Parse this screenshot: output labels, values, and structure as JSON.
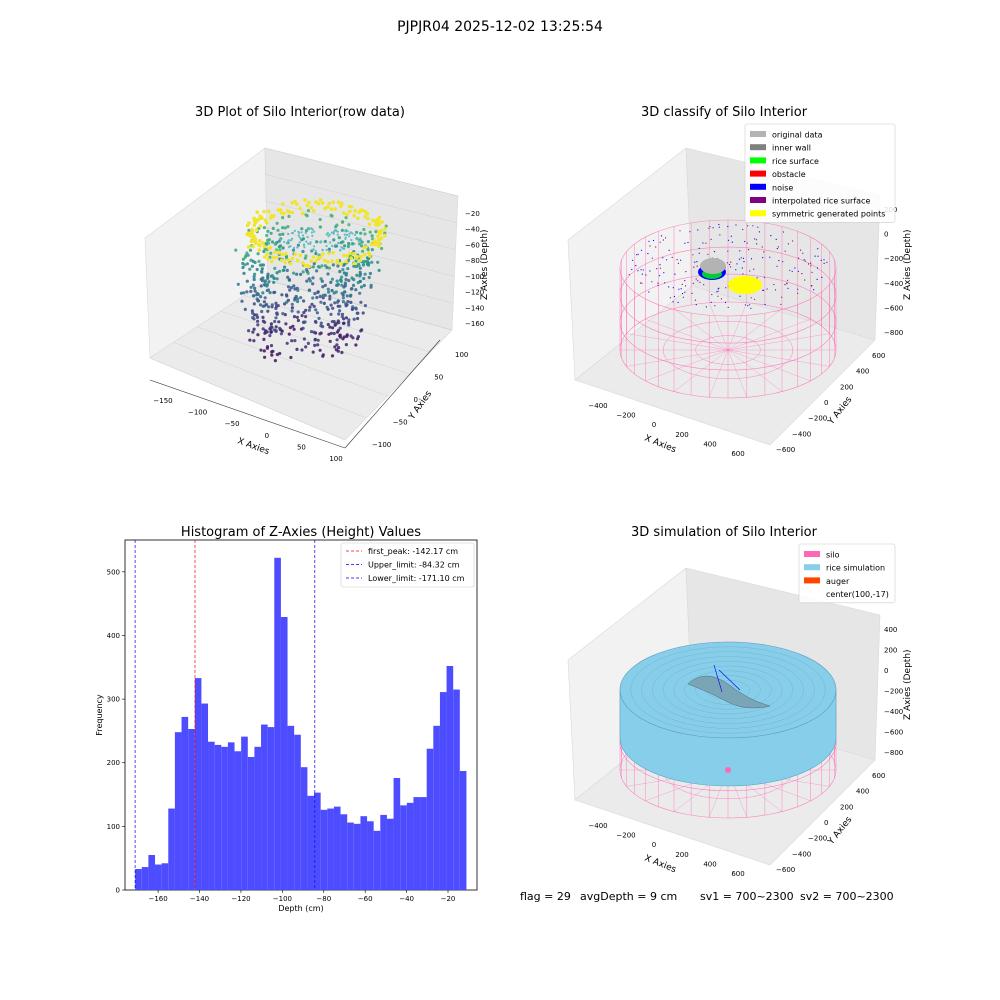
{
  "suptitle": "PJPJR04 2025-12-02 13:25:54",
  "footer": {
    "flag": "flag = 29",
    "avg": "avgDepth = 9 cm",
    "sv1": "sv1 = 700~2300",
    "sv2": "sv2 = 700~2300"
  },
  "colors": {
    "hist_bar": "#4d4dff",
    "peak_line": "#ff0000",
    "limit_line": "#0000ff",
    "silo": "#ff69b4",
    "rice": "#87ceeb",
    "auger": "#ff4500",
    "original": "#b3b3b3",
    "inner_wall": "#808080",
    "rice_surface": "#00ff00",
    "obstacle": "#ff0000",
    "noise": "#0000ff",
    "interpolated": "#800080",
    "symmetric": "#ffff00"
  },
  "chart_data": [
    {
      "type": "scatter",
      "projection": "3d",
      "title": "3D Plot of Silo Interior(row data)",
      "xlabel": "X Axies",
      "ylabel": "Y Axies",
      "zlabel": "Z Axies (Depth)",
      "xticks": [
        "−150",
        "−100",
        "−50",
        "0",
        "50",
        "100"
      ],
      "yticks": [
        "−100",
        "−50",
        "0",
        "50",
        "100"
      ],
      "zticks": [
        "−20",
        "−40",
        "−60",
        "−80",
        "−100",
        "−120",
        "−140",
        "−160"
      ],
      "colormap": "viridis"
    },
    {
      "type": "scatter",
      "projection": "3d",
      "title": "3D classify of Silo Interior",
      "xlabel": "X Axies",
      "ylabel": "Y Axies",
      "zlabel": "Z Axies (Depth)",
      "xticks": [
        "−400",
        "−200",
        "0",
        "200",
        "400",
        "600"
      ],
      "yticks": [
        "−600",
        "−400",
        "−200",
        "0",
        "200",
        "400",
        "600"
      ],
      "zticks": [
        "200",
        "0",
        "−200",
        "−400",
        "−600",
        "−800"
      ],
      "legend_position": "top-right",
      "legend": [
        {
          "label": "original data",
          "color": "#b3b3b3"
        },
        {
          "label": "inner wall",
          "color": "#808080"
        },
        {
          "label": "rice surface",
          "color": "#00ff00"
        },
        {
          "label": "obstacle",
          "color": "#ff0000"
        },
        {
          "label": "noise",
          "color": "#0000ff"
        },
        {
          "label": "interpolated rice surface",
          "color": "#800080"
        },
        {
          "label": "symmetric generated points",
          "color": "#ffff00"
        }
      ]
    },
    {
      "type": "bar",
      "title": "Histogram of Z-Axies (Height) Values",
      "xlabel": "Depth (cm)",
      "ylabel": "Frequency",
      "xlim": [
        -176,
        -6
      ],
      "ylim": [
        0,
        550
      ],
      "xticks": [
        -160,
        -140,
        -120,
        -100,
        -80,
        -60,
        -40,
        -20
      ],
      "yticks": [
        0,
        100,
        200,
        300,
        400,
        500
      ],
      "bin_start": -171.1,
      "bin_width": 3.2,
      "values": [
        33,
        36,
        55,
        40,
        42,
        128,
        248,
        272,
        253,
        333,
        293,
        233,
        228,
        225,
        232,
        218,
        241,
        209,
        225,
        260,
        256,
        522,
        429,
        258,
        244,
        193,
        148,
        153,
        126,
        128,
        131,
        119,
        106,
        104,
        116,
        108,
        93,
        118,
        112,
        176,
        133,
        137,
        146,
        146,
        222,
        258,
        311,
        352,
        315,
        187
      ],
      "vlines": [
        {
          "label": "first_peak: -142.17 cm",
          "x": -142.17,
          "color": "#ff0000"
        },
        {
          "label": "Upper_limit: -84.32 cm",
          "x": -84.32,
          "color": "#0000ff"
        },
        {
          "label": "Lower_limit: -171.10 cm",
          "x": -171.1,
          "color": "#0000ff"
        }
      ],
      "legend_position": "top-right"
    },
    {
      "type": "surface",
      "projection": "3d",
      "title": "3D simulation of Silo Interior",
      "xlabel": "X Axies",
      "ylabel": "Y Axies",
      "zlabel": "Z Axies (Depth)",
      "xticks": [
        "−400",
        "−200",
        "0",
        "200",
        "400",
        "600"
      ],
      "yticks": [
        "−600",
        "−400",
        "−200",
        "0",
        "200",
        "400",
        "600"
      ],
      "zticks": [
        "400",
        "200",
        "0",
        "−200",
        "−400",
        "−600",
        "−800"
      ],
      "legend_position": "top-right",
      "legend": [
        {
          "label": "silo",
          "color": "#ff69b4"
        },
        {
          "label": "rice simulation",
          "color": "#87ceeb"
        },
        {
          "label": "auger",
          "color": "#ff4500"
        },
        {
          "label": "center(100,-17)",
          "color": ""
        }
      ]
    }
  ]
}
